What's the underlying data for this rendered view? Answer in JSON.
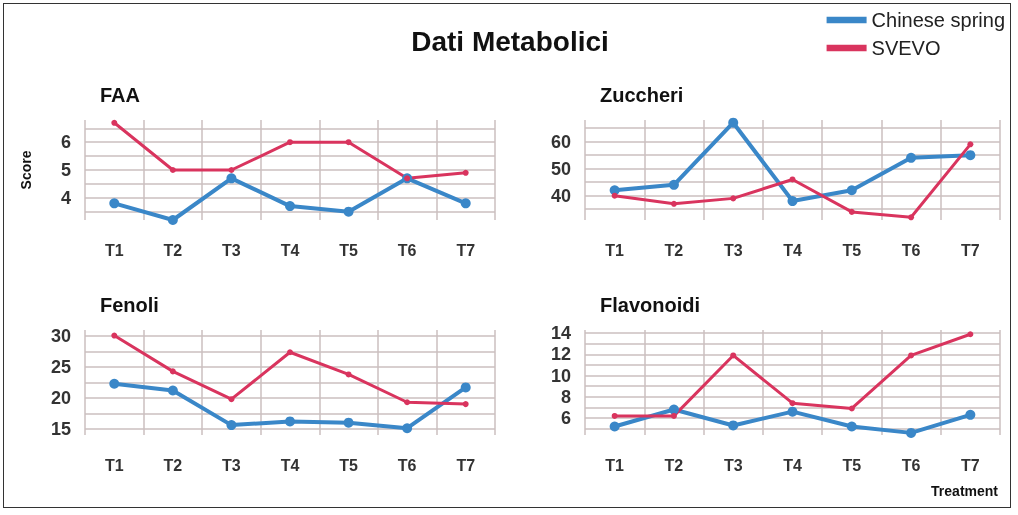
{
  "chart_data": [
    {
      "type": "other",
      "title": "Dati Metabolici"
    },
    {
      "type": "line",
      "title": "FAA",
      "ylabel": "Score",
      "categories": [
        "T1",
        "T2",
        "T3",
        "T4",
        "T5",
        "T6",
        "T7"
      ],
      "series": [
        {
          "color": "#3a87c8",
          "values": [
            3.8,
            3.2,
            4.7,
            3.7,
            3.5,
            4.7,
            3.8
          ]
        },
        {
          "color": "#d9345e",
          "values": [
            6.7,
            5.0,
            5.0,
            6.0,
            6.0,
            4.7,
            4.9
          ]
        }
      ],
      "ylim": [
        3.2,
        6.8
      ],
      "yticks": [
        {
          "value": 3.5,
          "label": null
        },
        4,
        {
          "value": 4.5,
          "label": null
        },
        5,
        {
          "value": 5.5,
          "label": null
        },
        6,
        {
          "value": 6.5,
          "label": null
        }
      ],
      "grid": true,
      "marker": "circle",
      "line_style": "solid",
      "legend": false
    },
    {
      "type": "line",
      "title": "Zuccheri",
      "categories": [
        "T1",
        "T2",
        "T3",
        "T4",
        "T5",
        "T6",
        "T7"
      ],
      "series": [
        {
          "name": "Chinese spring",
          "color": "#3a87c8",
          "values": [
            42,
            44,
            67,
            38,
            42,
            54,
            55
          ]
        },
        {
          "name": "SVEVO",
          "color": "#d9345e",
          "values": [
            40,
            37,
            39,
            46,
            34,
            32,
            59
          ]
        }
      ],
      "ylim": [
        31,
        68
      ],
      "yticks": [
        {
          "value": 35,
          "label": null
        },
        40,
        {
          "value": 45,
          "label": null
        },
        50,
        {
          "value": 55,
          "label": null
        },
        60,
        {
          "value": 65,
          "label": null
        }
      ],
      "grid": true,
      "marker": "circle",
      "line_style": "solid",
      "legend": "top right"
    },
    {
      "type": "line",
      "title": "Fenoli",
      "categories": [
        "T1",
        "T2",
        "T3",
        "T4",
        "T5",
        "T6",
        "T7"
      ],
      "series": [
        {
          "color": "#3a87c8",
          "values": [
            22.3,
            21.2,
            15.6,
            16.2,
            16.0,
            15.1,
            21.7
          ]
        },
        {
          "color": "#d9345e",
          "values": [
            30.1,
            24.3,
            19.8,
            27.4,
            23.8,
            19.3,
            19.0
          ]
        }
      ],
      "ylim": [
        14,
        31
      ],
      "yticks": [
        15,
        {
          "value": 17.5,
          "label": null
        },
        20,
        {
          "value": 22.5,
          "label": null
        },
        25,
        {
          "value": 27.5,
          "label": null
        },
        30
      ],
      "grid": true,
      "marker": "circle",
      "line_style": "solid",
      "legend": false
    },
    {
      "type": "line",
      "title": "Flavonoidi",
      "xlabel": "Treatment",
      "categories": [
        "T1",
        "T2",
        "T3",
        "T4",
        "T5",
        "T6",
        "T7"
      ],
      "series": [
        {
          "color": "#3a87c8",
          "values": [
            5.2,
            6.8,
            5.3,
            6.6,
            5.2,
            4.6,
            6.3
          ]
        },
        {
          "color": "#d9345e",
          "values": [
            6.2,
            6.2,
            11.9,
            7.4,
            6.9,
            11.9,
            13.9
          ]
        }
      ],
      "ylim": [
        4.4,
        14.3
      ],
      "yticks": [
        {
          "value": 5,
          "label": null
        },
        6,
        {
          "value": 7,
          "label": null
        },
        8,
        {
          "value": 9,
          "label": null
        },
        10,
        {
          "value": 11,
          "label": null
        },
        12,
        {
          "value": 13,
          "label": null
        },
        14
      ],
      "grid": true,
      "marker": "circle",
      "line_style": "solid",
      "legend": false
    }
  ]
}
